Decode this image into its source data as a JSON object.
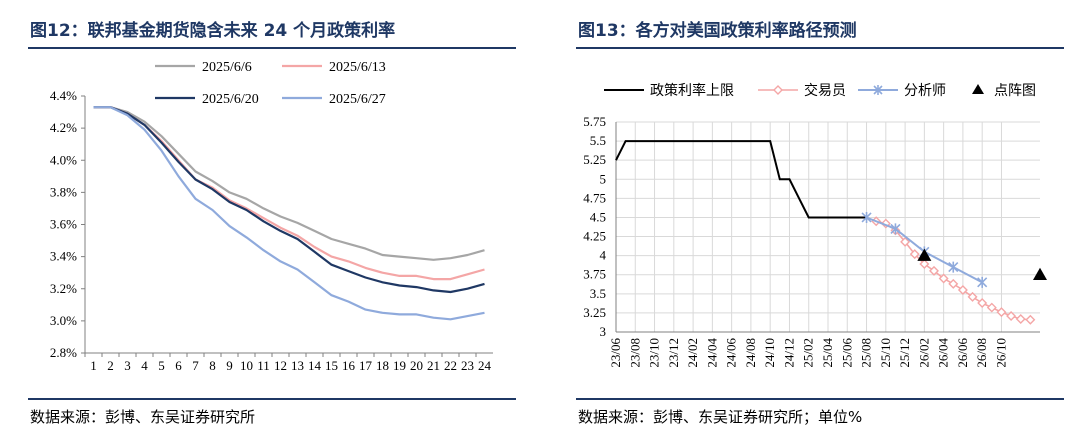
{
  "left": {
    "figure_title": "图12：联邦基金期货隐含未来 24 个月政策利率",
    "source": "数据来源：彭博、东吴证券研究所"
  },
  "right": {
    "figure_title": "图13：各方对美国政策利率路径预测",
    "source": "数据来源：彭博、东吴证券研究所；单位%"
  },
  "chart_data": [
    {
      "type": "line",
      "title": "",
      "xlabel": "",
      "ylabel": "",
      "ylim": [
        2.8,
        4.4
      ],
      "y_tick_labels": [
        "4.4%",
        "4.2%",
        "4.0%",
        "3.8%",
        "3.6%",
        "3.4%",
        "3.2%",
        "3.0%",
        "2.8%"
      ],
      "categories": [
        1,
        2,
        3,
        4,
        5,
        6,
        7,
        8,
        9,
        10,
        11,
        12,
        13,
        14,
        15,
        16,
        17,
        18,
        19,
        20,
        21,
        22,
        23,
        24
      ],
      "legend_position": "top",
      "grid": false,
      "series": [
        {
          "name": "2025/6/6",
          "color": "#a6a6a6",
          "values": [
            4.33,
            4.33,
            4.3,
            4.24,
            4.15,
            4.04,
            3.93,
            3.87,
            3.8,
            3.76,
            3.7,
            3.65,
            3.61,
            3.56,
            3.51,
            3.48,
            3.45,
            3.41,
            3.4,
            3.39,
            3.38,
            3.39,
            3.41,
            3.44
          ]
        },
        {
          "name": "2025/6/13",
          "color": "#f4a6a6",
          "values": [
            4.33,
            4.33,
            4.29,
            4.22,
            4.12,
            4.0,
            3.88,
            3.83,
            3.75,
            3.7,
            3.64,
            3.58,
            3.53,
            3.46,
            3.4,
            3.37,
            3.33,
            3.3,
            3.28,
            3.28,
            3.26,
            3.26,
            3.29,
            3.32
          ]
        },
        {
          "name": "2025/6/20",
          "color": "#1f3864",
          "values": [
            4.33,
            4.33,
            4.29,
            4.22,
            4.11,
            3.99,
            3.88,
            3.82,
            3.74,
            3.69,
            3.62,
            3.56,
            3.51,
            3.43,
            3.35,
            3.31,
            3.27,
            3.24,
            3.22,
            3.21,
            3.19,
            3.18,
            3.2,
            3.23
          ]
        },
        {
          "name": "2025/6/27",
          "color": "#8faadc",
          "values": [
            4.33,
            4.33,
            4.28,
            4.19,
            4.06,
            3.9,
            3.76,
            3.69,
            3.59,
            3.52,
            3.44,
            3.37,
            3.32,
            3.24,
            3.16,
            3.12,
            3.07,
            3.05,
            3.04,
            3.04,
            3.02,
            3.01,
            3.03,
            3.05
          ]
        }
      ]
    },
    {
      "type": "line",
      "title": "",
      "xlabel": "",
      "ylabel": "",
      "ylim": [
        3.0,
        5.75
      ],
      "y_tick_labels": [
        "5.75",
        "5.5",
        "5.25",
        "5",
        "4.75",
        "4.5",
        "4.25",
        "4",
        "3.75",
        "3.5",
        "3.25",
        "3"
      ],
      "categories": [
        "23/06",
        "23/08",
        "23/10",
        "23/12",
        "24/02",
        "24/04",
        "24/06",
        "24/08",
        "24/10",
        "24/12",
        "25/02",
        "25/04",
        "25/06",
        "25/08",
        "25/10",
        "25/12",
        "26/02",
        "26/04",
        "26/06",
        "26/08",
        "26/10"
      ],
      "legend_position": "top",
      "grid": true,
      "series": [
        {
          "name": "政策利率上限",
          "color": "#000000",
          "marker": "none",
          "x": [
            0,
            1,
            15,
            16,
            17,
            18,
            19,
            20,
            21,
            26
          ],
          "values": [
            5.25,
            5.5,
            5.5,
            5.5,
            5.0,
            5.0,
            4.75,
            4.5,
            4.5,
            4.5
          ]
        },
        {
          "name": "交易员",
          "color": "#f4a6a6",
          "marker": "diamond",
          "x": [
            27,
            28,
            29,
            30,
            31,
            32,
            33,
            34,
            35,
            36,
            37,
            38,
            39,
            40,
            41,
            42,
            43
          ],
          "values": [
            4.45,
            4.42,
            4.33,
            4.18,
            4.02,
            3.89,
            3.8,
            3.7,
            3.63,
            3.55,
            3.46,
            3.38,
            3.32,
            3.26,
            3.21,
            3.17,
            3.16
          ]
        },
        {
          "name": "分析师",
          "color": "#8faadc",
          "marker": "x",
          "x": [
            26,
            29,
            32,
            35,
            38
          ],
          "values": [
            4.5,
            4.35,
            4.05,
            3.85,
            3.65
          ]
        },
        {
          "name": "点阵图",
          "color": "#000000",
          "marker": "triangle",
          "x": [
            32,
            44
          ],
          "values": [
            4.0,
            3.75
          ]
        }
      ]
    }
  ]
}
